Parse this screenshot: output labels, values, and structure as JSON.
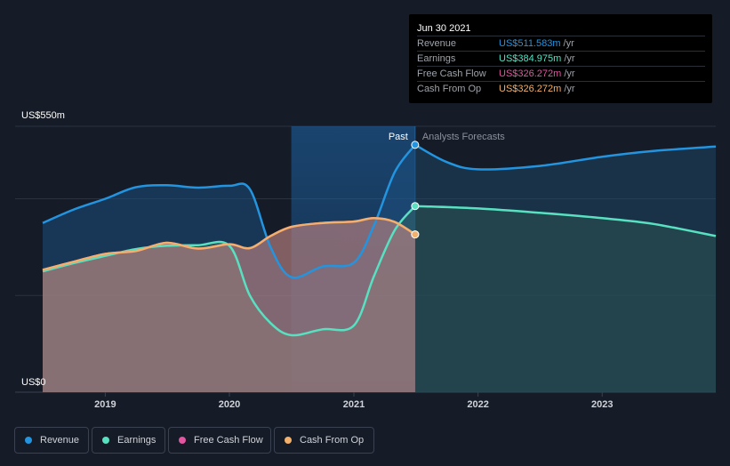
{
  "chart_data": {
    "type": "area",
    "y_axis_labels": {
      "top": "US$550m",
      "bottom": "US$0"
    },
    "ylim": [
      0,
      550
    ],
    "xlim": [
      "2018-07",
      "2023-12"
    ],
    "x_ticks": [
      "2019",
      "2020",
      "2021",
      "2022",
      "2023"
    ],
    "past_label": "Past",
    "forecast_label": "Analysts Forecasts",
    "past_end_date": "2021-06-30",
    "highlight_start_date": "2020-07-01",
    "series": [
      {
        "name": "Revenue",
        "color": "#2394df",
        "points": [
          [
            "2018-07",
            350
          ],
          [
            "2018-10",
            378
          ],
          [
            "2019-01",
            400
          ],
          [
            "2019-04",
            424
          ],
          [
            "2019-07",
            428
          ],
          [
            "2019-10",
            423
          ],
          [
            "2020-01",
            427
          ],
          [
            "2020-03",
            420
          ],
          [
            "2020-05",
            300
          ],
          [
            "2020-07",
            238
          ],
          [
            "2020-10",
            260
          ],
          [
            "2021-01",
            268
          ],
          [
            "2021-03",
            345
          ],
          [
            "2021-05",
            455
          ],
          [
            "2021-06-30",
            511.6
          ]
        ],
        "forecast": [
          [
            "2021-06-30",
            511.6
          ],
          [
            "2021-10",
            476
          ],
          [
            "2022-01",
            461
          ],
          [
            "2022-07",
            468
          ],
          [
            "2023-01",
            487
          ],
          [
            "2023-06",
            499
          ],
          [
            "2023-12",
            508
          ]
        ]
      },
      {
        "name": "Earnings",
        "color": "#58e1c1",
        "points": [
          [
            "2018-07",
            250
          ],
          [
            "2018-10",
            267
          ],
          [
            "2019-01",
            282
          ],
          [
            "2019-04",
            296
          ],
          [
            "2019-07",
            303
          ],
          [
            "2019-10",
            304
          ],
          [
            "2020-01",
            303
          ],
          [
            "2020-03",
            200
          ],
          [
            "2020-05",
            143
          ],
          [
            "2020-07",
            118
          ],
          [
            "2020-10",
            130
          ],
          [
            "2021-01",
            138
          ],
          [
            "2021-03",
            240
          ],
          [
            "2021-05",
            335
          ],
          [
            "2021-06-30",
            385
          ]
        ],
        "forecast": [
          [
            "2021-06-30",
            385
          ],
          [
            "2022-01",
            380
          ],
          [
            "2022-07",
            371
          ],
          [
            "2023-01",
            360
          ],
          [
            "2023-06",
            348
          ],
          [
            "2023-12",
            323
          ]
        ]
      },
      {
        "name": "Free Cash Flow",
        "color": "#e255a1",
        "points": [
          [
            "2018-07",
            253
          ],
          [
            "2018-10",
            270
          ],
          [
            "2019-01",
            286
          ],
          [
            "2019-04",
            292
          ],
          [
            "2019-07",
            309
          ],
          [
            "2019-10",
            297
          ],
          [
            "2020-01",
            306
          ],
          [
            "2020-03",
            298
          ],
          [
            "2020-05",
            323
          ],
          [
            "2020-07",
            342
          ],
          [
            "2020-10",
            350
          ],
          [
            "2021-01",
            353
          ],
          [
            "2021-03",
            360
          ],
          [
            "2021-05",
            352
          ],
          [
            "2021-06-30",
            326.3
          ]
        ],
        "forecast": []
      },
      {
        "name": "Cash From Op",
        "color": "#f2b06b",
        "points": [
          [
            "2018-07",
            253
          ],
          [
            "2018-10",
            270
          ],
          [
            "2019-01",
            286
          ],
          [
            "2019-04",
            292
          ],
          [
            "2019-07",
            309
          ],
          [
            "2019-10",
            297
          ],
          [
            "2020-01",
            306
          ],
          [
            "2020-03",
            298
          ],
          [
            "2020-05",
            323
          ],
          [
            "2020-07",
            342
          ],
          [
            "2020-10",
            350
          ],
          [
            "2021-01",
            353
          ],
          [
            "2021-03",
            360
          ],
          [
            "2021-05",
            352
          ],
          [
            "2021-06-30",
            326.3
          ]
        ],
        "forecast": []
      }
    ]
  },
  "tooltip": {
    "date": "Jun 30 2021",
    "unit": "/yr",
    "rows": [
      {
        "label": "Revenue",
        "value": "US$511.583m",
        "color": "#2394df"
      },
      {
        "label": "Earnings",
        "value": "US$384.975m",
        "color": "#58e1c1"
      },
      {
        "label": "Free Cash Flow",
        "value": "US$326.272m",
        "color": "#e255a1"
      },
      {
        "label": "Cash From Op",
        "value": "US$326.272m",
        "color": "#f2b06b"
      }
    ]
  },
  "legend": [
    {
      "label": "Revenue",
      "color": "#2394df"
    },
    {
      "label": "Earnings",
      "color": "#58e1c1"
    },
    {
      "label": "Free Cash Flow",
      "color": "#e255a1"
    },
    {
      "label": "Cash From Op",
      "color": "#f2b06b"
    }
  ]
}
